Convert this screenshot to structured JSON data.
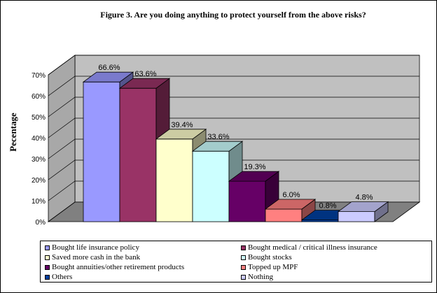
{
  "chart_data": {
    "type": "bar",
    "title": "Figure 3. Are you doing anything to protect yourself from the above risks?",
    "ylabel": "Pecentage",
    "ylim": [
      0,
      70
    ],
    "yticks": [
      "0%",
      "10%",
      "20%",
      "30%",
      "40%",
      "50%",
      "60%",
      "70%"
    ],
    "categories": [
      "Bought life insurance policy",
      "Bought medical / critical illness insurance",
      "Saved more cash in the bank",
      "Bought stocks",
      "Bought annuities/other retirement products",
      "Topped up MPF",
      "Others",
      "Nothing"
    ],
    "values": [
      66.6,
      63.6,
      39.4,
      33.6,
      19.3,
      6.0,
      0.8,
      4.8
    ],
    "data_labels": [
      "66.6%",
      "63.6%",
      "39.4%",
      "33.6%",
      "19.3%",
      "6.0%",
      "0.8%",
      "4.8%"
    ],
    "colors": [
      "#9999ff",
      "#993366",
      "#ffffcc",
      "#ccffff",
      "#660066",
      "#ff8080",
      "#0040a0",
      "#ccccff"
    ],
    "grid": true,
    "legend_position": "bottom"
  }
}
